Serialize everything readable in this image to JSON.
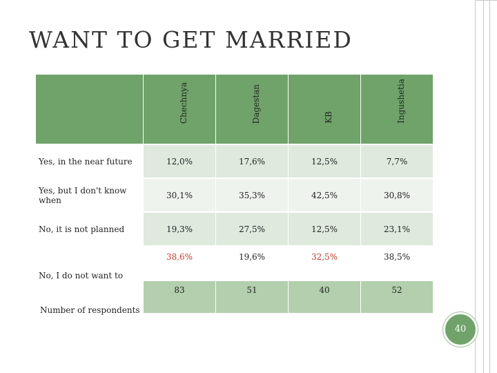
{
  "slide": {
    "title": "WANT TO GET MARRIED",
    "page_number": "40"
  },
  "table": {
    "columns": [
      "Chechnya",
      "Dagestan",
      "KB",
      "Ingushetia"
    ],
    "rows": [
      {
        "label": "Yes, in the near future",
        "values": [
          "12,0%",
          "17,6%",
          "12,5%",
          "7,7%"
        ]
      },
      {
        "label": "Yes, but I don't know when",
        "values": [
          "30,1%",
          "35,3%",
          "42,5%",
          "30,8%"
        ]
      },
      {
        "label": "No, it is not planned",
        "values": [
          "19,3%",
          "27,5%",
          "12,5%",
          "23,1%"
        ]
      },
      {
        "label": "No, I do not want to",
        "values": [
          "38,6%",
          "19,6%",
          "32,5%",
          "38,5%"
        ]
      },
      {
        "label": "Number of respondents",
        "values": [
          "83",
          "51",
          "40",
          "52"
        ]
      }
    ]
  },
  "colors": {
    "header_green": "#6fa36a",
    "accent_red": "#c0392b",
    "row_light": "#dfe9de",
    "row_total": "#b3cfad"
  }
}
